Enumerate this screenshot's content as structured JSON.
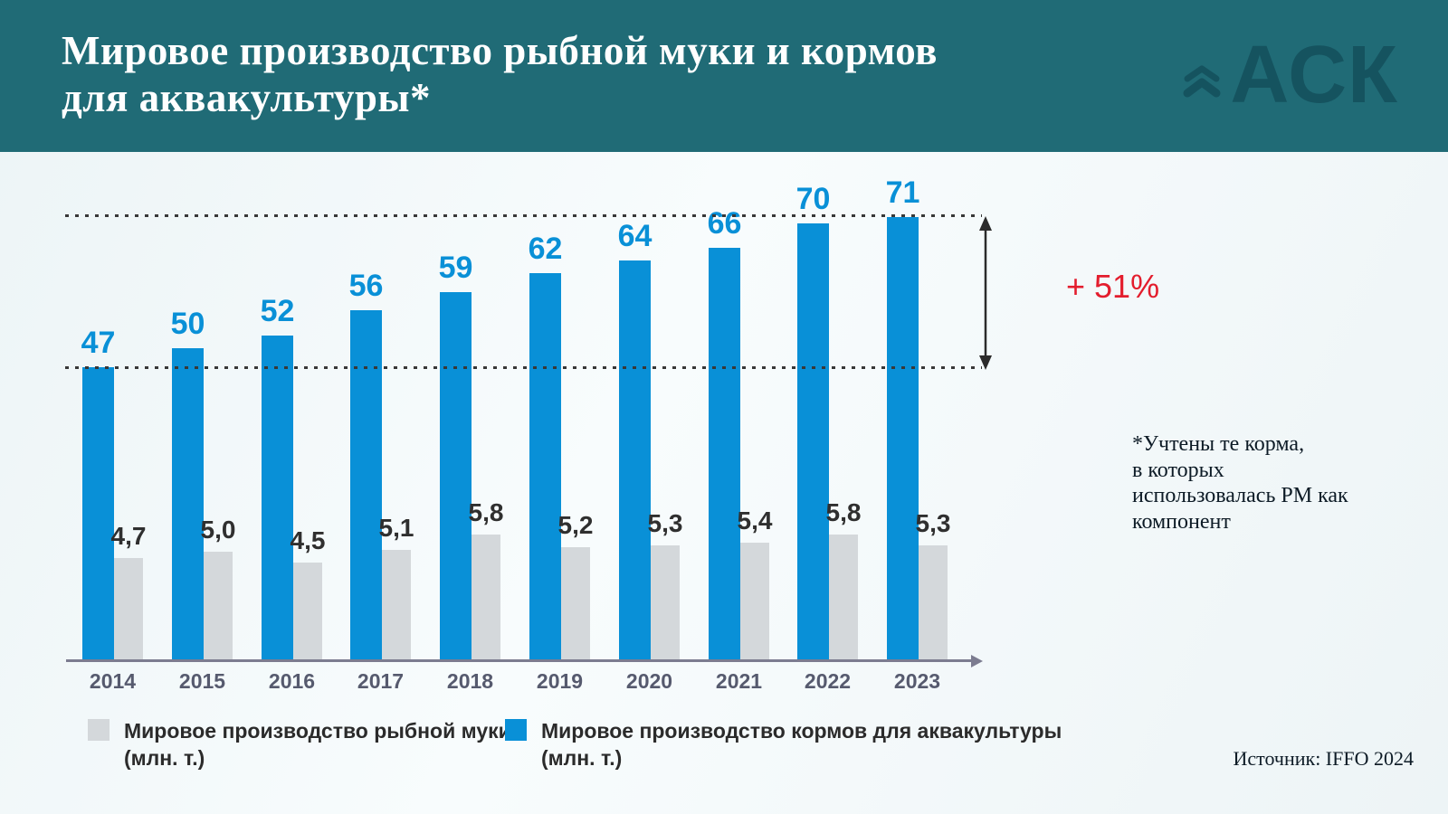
{
  "header": {
    "title": "Мировое производство рыбной муки и кормов\nдля аквакультуры*",
    "logo_text": "АСК"
  },
  "chart_data": {
    "type": "bar",
    "categories": [
      "2014",
      "2015",
      "2016",
      "2017",
      "2018",
      "2019",
      "2020",
      "2021",
      "2022",
      "2023"
    ],
    "series": [
      {
        "name": "Мировое производство рыбной муки (млн. т.)",
        "values": [
          4.7,
          5.0,
          4.5,
          5.1,
          5.8,
          5.2,
          5.3,
          5.4,
          5.8,
          5.3
        ],
        "labels": [
          "4,7",
          "5,0",
          "4,5",
          "5,1",
          "5,8",
          "5,2",
          "5,3",
          "5,4",
          "5,8",
          "5,3"
        ],
        "color": "#d4d8db"
      },
      {
        "name": "Мировое производство кормов для аквакультуры (млн. т.)",
        "values": [
          47,
          50,
          52,
          56,
          59,
          62,
          64,
          66,
          70,
          71
        ],
        "labels": [
          "47",
          "50",
          "52",
          "56",
          "59",
          "62",
          "64",
          "66",
          "70",
          "71"
        ],
        "color": "#0990d7"
      }
    ],
    "title": "Мировое производство рыбной муки и кормов для аквакультуры*",
    "xlabel": "",
    "ylabel": "",
    "legend_position": "bottom",
    "grid": "two dotted reference lines at 2014 and 2023 aquafeed levels",
    "annotations": [
      "+ 51%"
    ]
  },
  "annotation": {
    "growth_label": "+ 51%",
    "color": "#e31d2d"
  },
  "note": {
    "text": "*Учтены те корма,\nв которых\nиспользовалась РМ как\nкомпонент"
  },
  "legend": {
    "items": [
      {
        "label": "Мировое производство рыбной муки\n(млн. т.)",
        "color": "#d4d8db"
      },
      {
        "label": "Мировое производство кормов для аквакультуры\n(млн. т.)",
        "color": "#0990d7"
      }
    ]
  },
  "source": {
    "text": "Источник: IFFO 2024"
  },
  "colors": {
    "header_bg": "#206b76",
    "logo": "#15535f",
    "aquafeed_blue": "#0990d7",
    "fishmeal_gray": "#d4d8db",
    "growth_red": "#e31d2d"
  }
}
